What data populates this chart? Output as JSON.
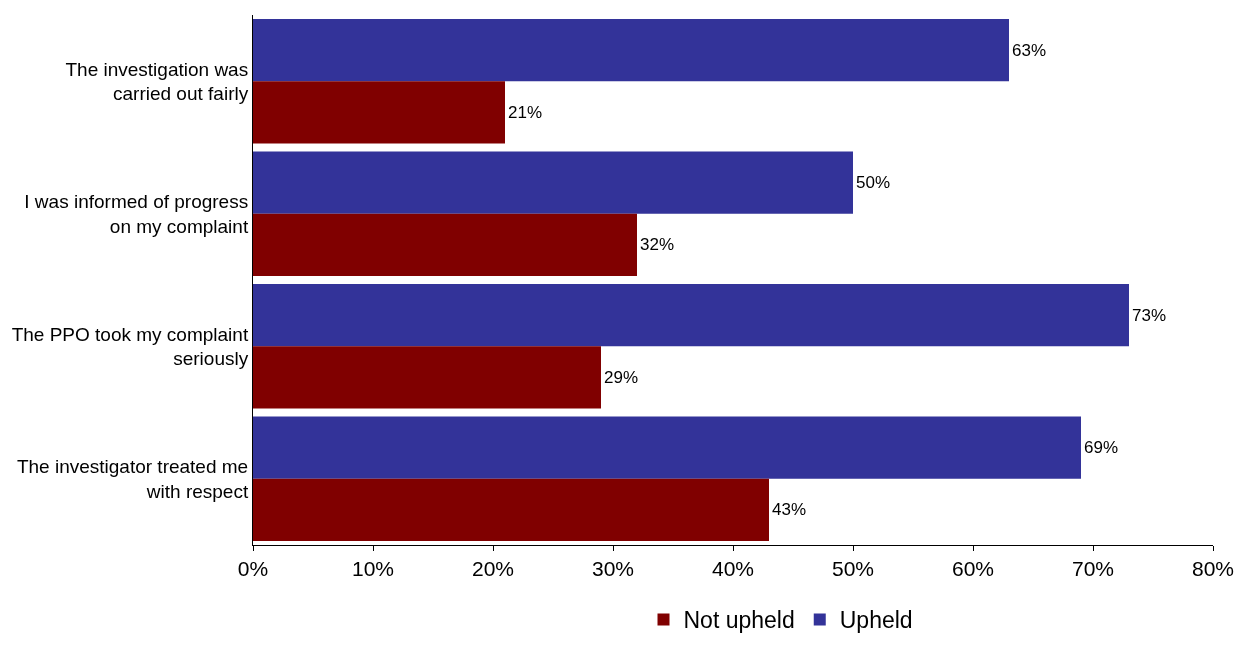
{
  "chart_data": {
    "type": "bar",
    "orientation": "horizontal",
    "categories": [
      "The investigation was carried out fairly",
      "I was informed of progress on my complaint",
      "The PPO took my complaint seriously",
      "The investigator treated me with respect"
    ],
    "series": [
      {
        "name": "Upheld",
        "color": "#333399",
        "values": [
          63,
          50,
          73,
          69
        ],
        "value_labels": [
          "63%",
          "50%",
          "73%",
          "69%"
        ]
      },
      {
        "name": "Not upheld",
        "color": "#800000",
        "values": [
          21,
          32,
          29,
          43
        ],
        "value_labels": [
          "21%",
          "32%",
          "29%",
          "43%"
        ]
      }
    ],
    "xlim": [
      0,
      80
    ],
    "xticks": [
      {
        "value": 0,
        "label": "0%"
      },
      {
        "value": 10,
        "label": "10%"
      },
      {
        "value": 20,
        "label": "20%"
      },
      {
        "value": 30,
        "label": "30%"
      },
      {
        "value": 40,
        "label": "40%"
      },
      {
        "value": 50,
        "label": "50%"
      },
      {
        "value": 60,
        "label": "60%"
      },
      {
        "value": 70,
        "label": "70%"
      },
      {
        "value": 80,
        "label": "80%"
      }
    ],
    "legend": "bottom"
  }
}
